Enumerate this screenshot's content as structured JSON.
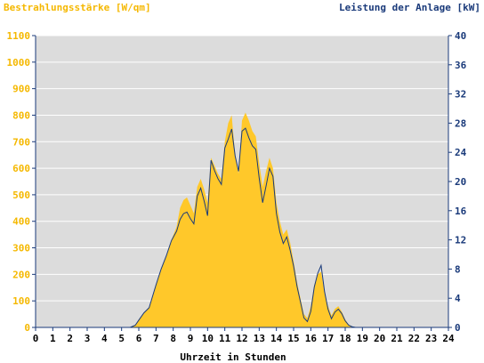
{
  "colors": {
    "irradiance": "#ffc82a",
    "irradiance_text": "#f5b800",
    "power": "#1a3a7a",
    "plot_background": "#dcdcdc",
    "grid": "#ffffff",
    "axis_line": "#1a3a7a"
  },
  "chart_data": {
    "type": "area",
    "left_axis_title": "Bestrahlungsstärke [W/qm]",
    "right_axis_title": "Leistung der Anlage [kW]",
    "xlabel": "Uhrzeit in Stunden",
    "xlim": [
      0,
      24
    ],
    "ylim_left": [
      0,
      1100
    ],
    "ylim_right": [
      0,
      40
    ],
    "x_ticks": [
      "0",
      "1",
      "2",
      "3",
      "4",
      "5",
      "6",
      "7",
      "8",
      "9",
      "10",
      "11",
      "12",
      "13",
      "14",
      "15",
      "16",
      "17",
      "18",
      "19",
      "20",
      "21",
      "22",
      "23",
      "24"
    ],
    "y_left_ticks": [
      "0",
      "100",
      "200",
      "300",
      "400",
      "500",
      "600",
      "700",
      "800",
      "900",
      "1000",
      "1100"
    ],
    "y_right_ticks": [
      "0",
      "4",
      "8",
      "12",
      "16",
      "20",
      "24",
      "28",
      "32",
      "36",
      "40"
    ],
    "grid": true,
    "series": [
      {
        "name": "Bestrahlungsstärke [W/qm]",
        "axis": "left",
        "style": "filled-area",
        "x": [
          0,
          5.5,
          5.8,
          6.0,
          6.3,
          6.6,
          7.0,
          7.3,
          7.6,
          7.9,
          8.2,
          8.4,
          8.6,
          8.8,
          9.0,
          9.2,
          9.4,
          9.6,
          9.8,
          10.0,
          10.2,
          10.4,
          10.6,
          10.8,
          11.0,
          11.2,
          11.4,
          11.6,
          11.8,
          12.0,
          12.2,
          12.4,
          12.6,
          12.8,
          13.0,
          13.2,
          13.4,
          13.6,
          13.8,
          14.0,
          14.2,
          14.4,
          14.6,
          14.8,
          15.0,
          15.2,
          15.4,
          15.6,
          15.8,
          16.0,
          16.2,
          16.4,
          16.6,
          16.8,
          17.0,
          17.2,
          17.4,
          17.6,
          17.8,
          18.0,
          18.2,
          18.4,
          18.6,
          18.8,
          19.0,
          24
        ],
        "y": [
          0,
          0,
          10,
          30,
          55,
          75,
          160,
          220,
          270,
          330,
          380,
          450,
          480,
          490,
          460,
          430,
          530,
          560,
          520,
          470,
          640,
          610,
          580,
          560,
          700,
          770,
          800,
          650,
          580,
          780,
          810,
          780,
          740,
          720,
          620,
          530,
          590,
          640,
          600,
          470,
          400,
          350,
          370,
          320,
          250,
          170,
          110,
          50,
          35,
          80,
          160,
          200,
          210,
          130,
          80,
          45,
          70,
          80,
          60,
          30,
          10,
          3,
          0,
          0,
          0,
          0
        ]
      },
      {
        "name": "Leistung der Anlage [kW]",
        "axis": "right",
        "style": "line",
        "x": [
          0,
          5.5,
          5.8,
          6.0,
          6.3,
          6.6,
          7.0,
          7.3,
          7.6,
          7.9,
          8.2,
          8.4,
          8.6,
          8.8,
          9.0,
          9.2,
          9.4,
          9.6,
          9.8,
          10.0,
          10.2,
          10.4,
          10.6,
          10.8,
          11.0,
          11.2,
          11.4,
          11.6,
          11.8,
          12.0,
          12.2,
          12.4,
          12.6,
          12.8,
          13.0,
          13.2,
          13.4,
          13.6,
          13.8,
          14.0,
          14.2,
          14.4,
          14.6,
          14.8,
          15.0,
          15.2,
          15.4,
          15.6,
          15.8,
          16.0,
          16.2,
          16.4,
          16.6,
          16.8,
          17.0,
          17.2,
          17.4,
          17.6,
          17.8,
          18.0,
          18.2,
          18.4,
          18.6,
          18.8,
          19.0,
          24
        ],
        "y": [
          0,
          0,
          0.3,
          1.0,
          2.0,
          2.7,
          5.8,
          8.0,
          9.8,
          11.9,
          13.2,
          14.8,
          15.6,
          15.8,
          14.9,
          14.2,
          18.0,
          19.1,
          17.3,
          15.3,
          22.9,
          21.5,
          20.4,
          19.6,
          24.6,
          25.8,
          27.2,
          23.5,
          21.4,
          26.9,
          27.3,
          26.0,
          24.9,
          24.4,
          20.5,
          17.1,
          19.4,
          21.8,
          20.7,
          15.6,
          13.1,
          11.5,
          12.4,
          10.6,
          8.4,
          5.6,
          3.5,
          1.3,
          0.8,
          2.2,
          5.5,
          7.4,
          8.5,
          4.9,
          2.5,
          1.2,
          2.1,
          2.5,
          1.9,
          0.9,
          0.3,
          0.1,
          0,
          0,
          0,
          0
        ]
      }
    ]
  }
}
